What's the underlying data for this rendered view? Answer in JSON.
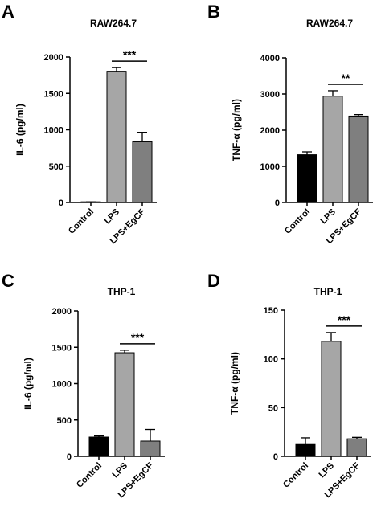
{
  "chart_data": [
    {
      "panel": "A",
      "type": "bar",
      "title": "RAW264.7",
      "ylabel": "IL-6 (pg/ml)",
      "ylim": [
        0,
        2000
      ],
      "yticks": [
        0,
        500,
        1000,
        1500,
        2000
      ],
      "categories": [
        "Control",
        "LPS",
        "LPS+EgCF"
      ],
      "values": [
        5,
        1805,
        835
      ],
      "errors": [
        3,
        50,
        130
      ],
      "colors": [
        "#000000",
        "#a6a6a6",
        "#7f7f7f"
      ],
      "significance": {
        "label": "***",
        "from": 1,
        "to": 2
      }
    },
    {
      "panel": "B",
      "type": "bar",
      "title": "RAW264.7",
      "ylabel": "TNF-α (pg/ml)",
      "ylim": [
        0,
        4000
      ],
      "yticks": [
        0,
        1000,
        2000,
        3000,
        4000
      ],
      "categories": [
        "Control",
        "LPS",
        "LPS+EgCF"
      ],
      "values": [
        1320,
        2940,
        2390
      ],
      "errors": [
        80,
        150,
        40
      ],
      "colors": [
        "#000000",
        "#a6a6a6",
        "#7f7f7f"
      ],
      "significance": {
        "label": "**",
        "from": 1,
        "to": 2
      }
    },
    {
      "panel": "C",
      "type": "bar",
      "title": "THP-1",
      "ylabel": "IL-6 (pg/ml)",
      "ylim": [
        0,
        2000
      ],
      "yticks": [
        0,
        500,
        1000,
        1500,
        2000
      ],
      "categories": [
        "Control",
        "LPS",
        "LPS+EgCF"
      ],
      "values": [
        265,
        1425,
        210
      ],
      "errors": [
        15,
        35,
        160
      ],
      "colors": [
        "#000000",
        "#a6a6a6",
        "#7f7f7f"
      ],
      "significance": {
        "label": "***",
        "from": 1,
        "to": 2
      }
    },
    {
      "panel": "D",
      "type": "bar",
      "title": "THP-1",
      "ylabel": "TNF-α (pg/ml)",
      "ylim": [
        0,
        150
      ],
      "yticks": [
        0,
        50,
        100,
        150
      ],
      "categories": [
        "Control",
        "LPS",
        "LPS+EgCF"
      ],
      "values": [
        13,
        118,
        18
      ],
      "errors": [
        6,
        9,
        1.5
      ],
      "colors": [
        "#000000",
        "#a6a6a6",
        "#7f7f7f"
      ],
      "significance": {
        "label": "***",
        "from": 1,
        "to": 2
      }
    }
  ]
}
